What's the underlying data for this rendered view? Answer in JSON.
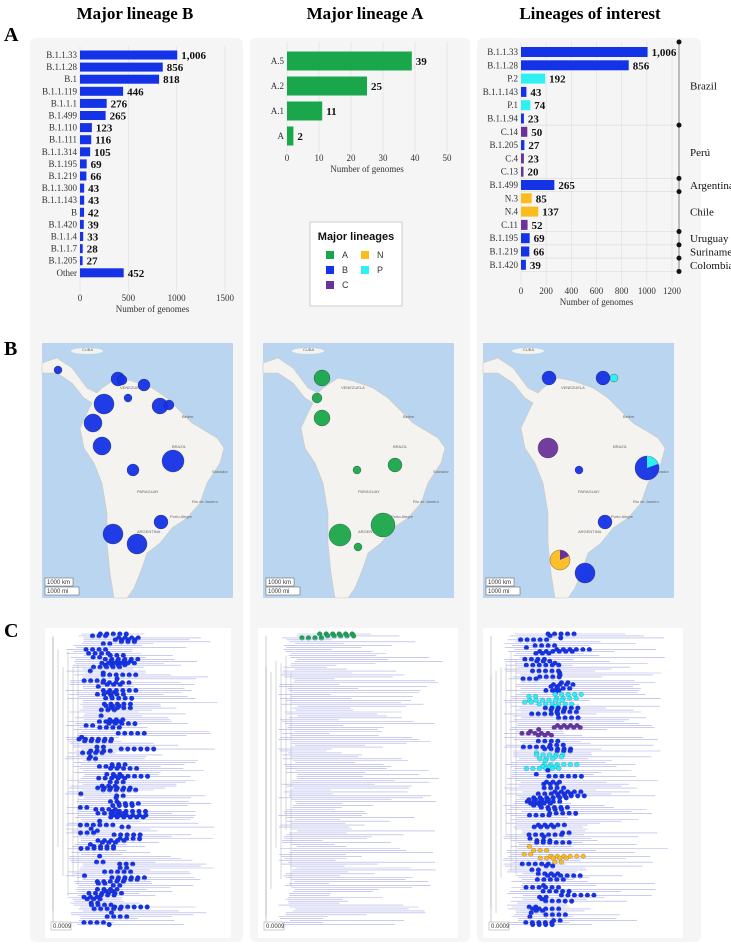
{
  "columns": [
    "Major lineage B",
    "Major lineage A",
    "Lineages of interest"
  ],
  "panel_labels": [
    "A",
    "B",
    "C"
  ],
  "colors": {
    "A": "#1aa64a",
    "B": "#1432e6",
    "C": "#6a3399",
    "N": "#fbbd1e",
    "P": "#2ef0f0",
    "map_sea": "#b9d5ef",
    "map_land": "#f4f3f0",
    "tree_branch": "#a9aee8"
  },
  "legend": {
    "title": "Major lineages",
    "items": [
      {
        "key": "A",
        "label": "A"
      },
      {
        "key": "N",
        "label": "N"
      },
      {
        "key": "B",
        "label": "B"
      },
      {
        "key": "P",
        "label": "P"
      },
      {
        "key": "C",
        "label": "C"
      }
    ]
  },
  "chart_data": [
    {
      "type": "bar",
      "title": "Major lineage B",
      "xlabel": "Number of genomes",
      "xlim": [
        0,
        1500
      ],
      "xticks": [
        "0",
        "500",
        "1000",
        "1500"
      ],
      "categories": [
        "B.1.1.33",
        "B.1.1.28",
        "B.1",
        "B.1.1.119",
        "B.1.1.1",
        "B.1.499",
        "B.1.110",
        "B.1.111",
        "B.1.1.314",
        "B.1.195",
        "B.1.219",
        "B.1.1.300",
        "B.1.1.143",
        "B",
        "B.1.420",
        "B.1.1.4",
        "B.1.1.7",
        "B.1.205",
        "Other"
      ],
      "values": [
        1006,
        856,
        818,
        446,
        276,
        265,
        123,
        116,
        105,
        69,
        66,
        43,
        43,
        42,
        39,
        33,
        28,
        27,
        452
      ],
      "labels": [
        "1,006",
        "856",
        "818",
        "446",
        "276",
        "265",
        "123",
        "116",
        "105",
        "69",
        "66",
        "43",
        "43",
        "42",
        "39",
        "33",
        "28",
        "27",
        "452"
      ],
      "lineage": [
        "B",
        "B",
        "B",
        "B",
        "B",
        "B",
        "B",
        "B",
        "B",
        "B",
        "B",
        "B",
        "B",
        "B",
        "B",
        "B",
        "B",
        "B",
        "B"
      ]
    },
    {
      "type": "bar",
      "title": "Major lineage A",
      "xlabel": "Number of genomes",
      "xlim": [
        0,
        50
      ],
      "xticks": [
        "0",
        "10",
        "20",
        "30",
        "40",
        "50"
      ],
      "categories": [
        "A.5",
        "A.2",
        "A.1",
        "A"
      ],
      "values": [
        39,
        25,
        11,
        2
      ],
      "labels": [
        "39",
        "25",
        "11",
        "2"
      ],
      "lineage": [
        "A",
        "A",
        "A",
        "A"
      ]
    },
    {
      "type": "bar",
      "title": "Lineages of interest",
      "xlabel": "Number of genomes",
      "xlim": [
        0,
        1200
      ],
      "xticks": [
        "0",
        "200",
        "400",
        "600",
        "800",
        "1000",
        "1200"
      ],
      "categories": [
        "B.1.1.33",
        "B.1.1.28",
        "P.2",
        "B.1.1.143",
        "P.1",
        "B.1.1.94",
        "C.14",
        "B.1.205",
        "C.4",
        "C.13",
        "B.1.499",
        "N.3",
        "N.4",
        "C.11",
        "B.1.195",
        "B.1.219",
        "B.1.420"
      ],
      "values": [
        1006,
        856,
        192,
        43,
        74,
        23,
        50,
        27,
        23,
        20,
        265,
        85,
        137,
        52,
        69,
        66,
        39
      ],
      "labels": [
        "1,006",
        "856",
        "192",
        "43",
        "74",
        "23",
        "50",
        "27",
        "23",
        "20",
        "265",
        "85",
        "137",
        "52",
        "69",
        "66",
        "39"
      ],
      "lineage": [
        "B",
        "B",
        "P",
        "B",
        "P",
        "B",
        "C",
        "B",
        "C",
        "C",
        "B",
        "N",
        "N",
        "C",
        "B",
        "B",
        "B"
      ],
      "groups": [
        {
          "country": "Brazil",
          "start": 0,
          "end": 5
        },
        {
          "country": "Perú",
          "start": 6,
          "end": 9
        },
        {
          "country": "Argentina",
          "start": 10,
          "end": 10
        },
        {
          "country": "Chile",
          "start": 11,
          "end": 13
        },
        {
          "country": "Uruguay",
          "start": 14,
          "end": 14
        },
        {
          "country": "Suriname",
          "start": 15,
          "end": 15
        },
        {
          "country": "Colombia",
          "start": 16,
          "end": 16
        }
      ]
    }
  ],
  "maps": {
    "labels": [
      "CUBA",
      "VENEZUELA",
      "BRAZIL",
      "PARAGUAY",
      "ARGENTINA",
      "Belém",
      "Salvador",
      "Rio de Janeiro",
      "Porto Alegre"
    ],
    "scale_km": "1000 km",
    "scale_mi": "1000 mi"
  },
  "trees": {
    "scale": "0.0009"
  }
}
